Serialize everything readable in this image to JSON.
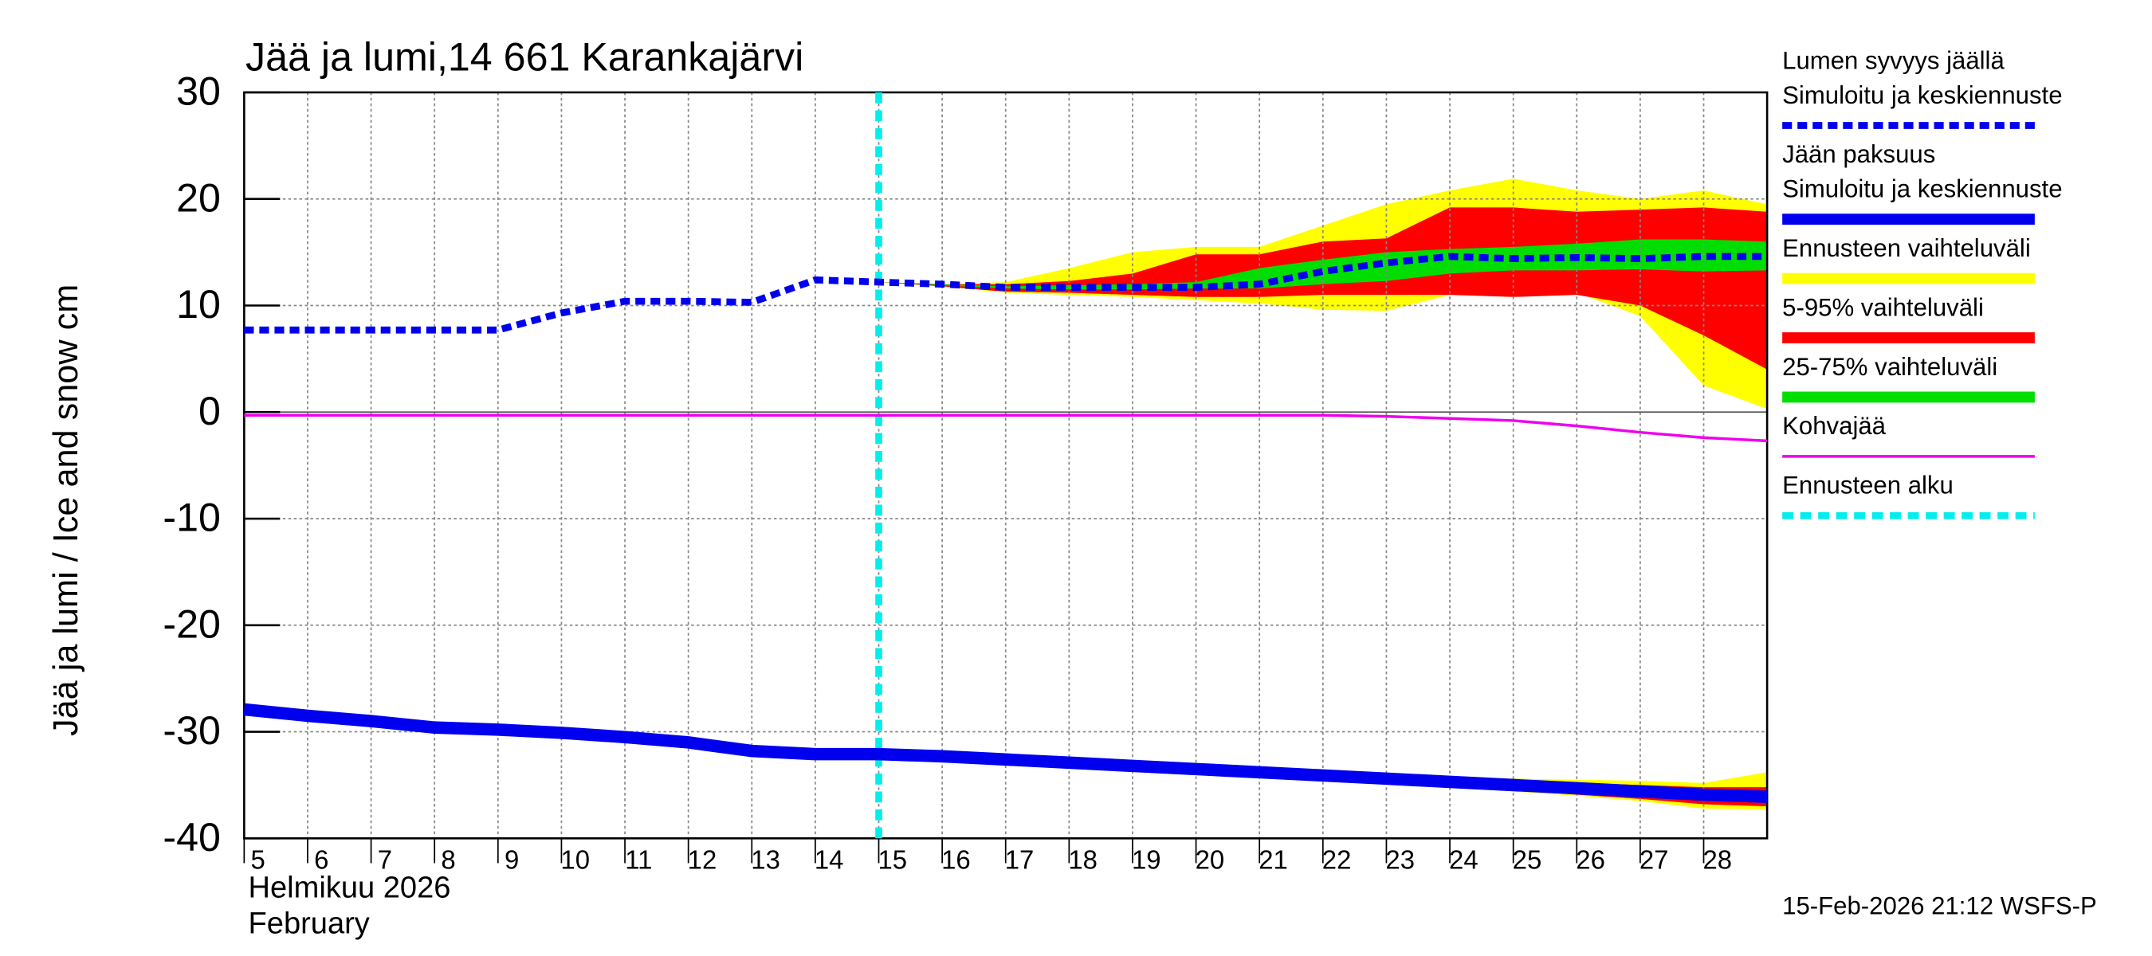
{
  "chart_data": {
    "type": "line",
    "title": "Jää ja lumi,14 661 Karankajärvi",
    "y_label": "Jää ja lumi / Ice and snow    cm",
    "x_label_fi": "Helmikuu  2026",
    "x_label_en": "February",
    "timestamp": "15-Feb-2026 21:12 WSFS-P",
    "xlim": [
      5,
      29
    ],
    "xticks": [
      5,
      6,
      7,
      8,
      9,
      10,
      11,
      12,
      13,
      14,
      15,
      16,
      17,
      18,
      19,
      20,
      21,
      22,
      23,
      24,
      25,
      26,
      27,
      28
    ],
    "ylim": [
      -40,
      30
    ],
    "yticks": [
      30,
      20,
      10,
      0,
      -10,
      -20,
      -30,
      -40
    ],
    "grid": true,
    "x": [
      5,
      6,
      7,
      8,
      9,
      10,
      11,
      12,
      13,
      14,
      15,
      16,
      17,
      18,
      19,
      20,
      21,
      22,
      23,
      24,
      25,
      26,
      27,
      28,
      29
    ],
    "series": [
      {
        "name": "Lumen syvyys jäällä",
        "subtitle": "Simuloitu ja keskiennuste",
        "color": "#0000ee",
        "style": "dashed",
        "values": [
          7.7,
          7.7,
          7.7,
          7.7,
          7.7,
          9.3,
          10.4,
          10.4,
          10.3,
          12.4,
          12.2,
          12,
          11.7,
          11.7,
          11.7,
          11.7,
          12,
          13.2,
          14,
          14.6,
          14.4,
          14.5,
          14.4,
          14.6,
          14.6
        ]
      },
      {
        "name": "Jään paksuus",
        "subtitle": "Simuloitu ja keskiennuste",
        "color": "#0000ee",
        "style": "thick",
        "values": [
          -27.9,
          -28.5,
          -29,
          -29.6,
          -29.8,
          -30.1,
          -30.5,
          -31,
          -31.8,
          -32.1,
          -32.1,
          -32.3,
          -32.6,
          -32.9,
          -33.2,
          -33.5,
          -33.8,
          -34.1,
          -34.4,
          -34.7,
          -35,
          -35.3,
          -35.6,
          -35.9,
          -36.1
        ]
      },
      {
        "name": "Kohvajää",
        "color": "#ee00ee",
        "style": "thin",
        "values": [
          -0.3,
          -0.3,
          -0.3,
          -0.3,
          -0.3,
          -0.3,
          -0.3,
          -0.3,
          -0.3,
          -0.3,
          -0.3,
          -0.3,
          -0.3,
          -0.3,
          -0.3,
          -0.3,
          -0.3,
          -0.3,
          -0.4,
          -0.6,
          -0.8,
          -1.3,
          -1.9,
          -2.4,
          -2.7
        ]
      }
    ],
    "forecast_x": [
      15,
      16,
      17,
      18,
      19,
      20,
      21,
      22,
      23,
      24,
      25,
      26,
      27,
      28,
      29
    ],
    "bands": [
      {
        "name": "Ennusteen vaihteluväli",
        "color": "#ffff00",
        "snow_upper": [
          12.2,
          12,
          12.2,
          13.5,
          15,
          15.5,
          15.5,
          17.5,
          19.5,
          20.8,
          21.9,
          20.8,
          20,
          20.8,
          19.5
        ],
        "snow_lower": [
          12.2,
          11.8,
          11.2,
          11,
          10.8,
          10.5,
          10.2,
          9.6,
          9.5,
          11,
          11,
          11.2,
          9,
          2.5,
          0.3
        ],
        "ice_upper": [
          -32.1,
          -32.3,
          -32.6,
          -32.9,
          -33.2,
          -33.5,
          -33.8,
          -34,
          -34.2,
          -34.3,
          -34.4,
          -34.5,
          -34.6,
          -34.8,
          -33.8
        ],
        "ice_lower": [
          -32.1,
          -32.3,
          -32.6,
          -32.9,
          -33.4,
          -33.8,
          -34,
          -34.3,
          -34.7,
          -35.1,
          -35.6,
          -36,
          -36.5,
          -37.2,
          -37.3
        ]
      },
      {
        "name": "5-95% vaihteluväli",
        "color": "#ff0000",
        "snow_upper": [
          12.2,
          12,
          12,
          12.3,
          13,
          14.8,
          14.8,
          16,
          16.3,
          19.2,
          19.2,
          18.8,
          19,
          19.2,
          18.8
        ],
        "snow_lower": [
          12.2,
          11.8,
          11.3,
          11.2,
          11,
          10.8,
          10.8,
          11,
          11,
          11,
          10.8,
          11,
          10,
          7.2,
          4
        ],
        "ice_upper": [
          -32.1,
          -32.3,
          -32.6,
          -32.9,
          -33.2,
          -33.5,
          -33.8,
          -34.1,
          -34.3,
          -34.5,
          -34.6,
          -34.8,
          -35,
          -35.2,
          -35.2
        ],
        "ice_lower": [
          -32.1,
          -32.3,
          -32.6,
          -32.9,
          -33.3,
          -33.6,
          -33.9,
          -34.2,
          -34.6,
          -35,
          -35.5,
          -35.9,
          -36.3,
          -36.8,
          -37
        ]
      },
      {
        "name": "25-75% vaihteluväli",
        "color": "#00dd00",
        "snow_upper": [
          12.2,
          12,
          11.8,
          11.9,
          12,
          12.2,
          13.5,
          14.3,
          15,
          15.3,
          15.5,
          15.8,
          16.2,
          16.2,
          16
        ],
        "snow_lower": [
          12.2,
          11.9,
          11.6,
          11.5,
          11.5,
          11.6,
          11.6,
          12,
          12.3,
          13,
          13.3,
          13.3,
          13.4,
          13.2,
          13.3
        ],
        "ice_upper": [
          -32.1,
          -32.3,
          -32.6,
          -32.9,
          -33.1,
          -33.4,
          -33.7,
          -34,
          -34.3,
          -34.5,
          -34.8,
          -35.1,
          -35.3,
          -35.6,
          -35.8
        ],
        "ice_lower": [
          -32.1,
          -32.3,
          -32.6,
          -32.9,
          -33.3,
          -33.6,
          -33.9,
          -34.2,
          -34.5,
          -34.9,
          -35.2,
          -35.5,
          -35.9,
          -36.2,
          -36.4
        ]
      }
    ],
    "forecast_start": {
      "name": "Ennusteen alku",
      "x": 15,
      "color": "#00eeee"
    }
  }
}
